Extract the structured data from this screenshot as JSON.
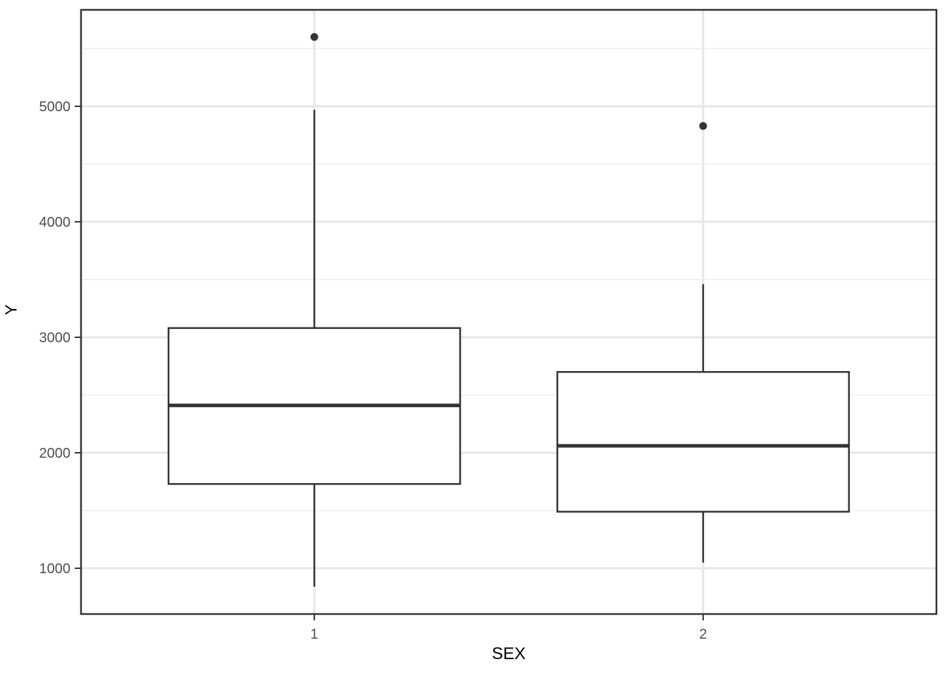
{
  "figure": {
    "background": "#ffffff"
  },
  "chart_data": {
    "type": "boxplot",
    "title": "",
    "xlabel": "SEX",
    "ylabel": "Y",
    "categories": [
      "1",
      "2"
    ],
    "ylim": [
      604,
      5835
    ],
    "y_major_ticks": [
      1000,
      2000,
      3000,
      4000,
      5000
    ],
    "y_minor_gridlines": [
      1500,
      2500,
      3500,
      4500,
      5500
    ],
    "grid": "major-and-minor-horizontal, major-vertical-at-categories",
    "legend": "none",
    "boxes": [
      {
        "category": "1",
        "whisker_low": 840,
        "q1": 1730,
        "median": 2410,
        "q3": 3080,
        "whisker_high": 4970,
        "outliers": [
          5600
        ]
      },
      {
        "category": "2",
        "whisker_low": 1050,
        "q1": 1490,
        "median": 2060,
        "q3": 2700,
        "whisker_high": 3460,
        "outliers": [
          4830
        ]
      }
    ],
    "colors": {
      "panel_background": "#ffffff",
      "panel_border": "#333333",
      "grid_major": "#e7e7e7",
      "grid_minor": "#f2f2f2",
      "box_border": "#333333",
      "box_fill": "#ffffff",
      "median": "#333333",
      "whisker": "#333333",
      "outlier": "#333333",
      "tick": "#333333",
      "tick_label": "#4d4d4d",
      "axis_title": "#000000"
    }
  }
}
